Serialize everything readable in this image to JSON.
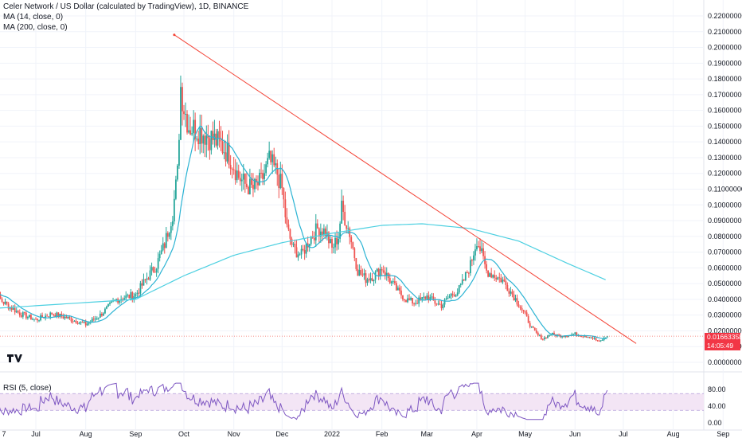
{
  "legend": {
    "title": "Celer Network / US Dollar (calculated by TradingView), 1D, BINANCE",
    "ma14": "MA (14, close, 0)",
    "ma200": "MA (200, close, 0)",
    "rsi": "RSI (5, close)"
  },
  "price_tag": {
    "price": "0.01663358",
    "countdown": "14:05:49",
    "color": "#f23645"
  },
  "colors": {
    "up": "#26a69a",
    "down": "#ef5350",
    "ma14": "#2bb3d3",
    "ma200": "#4dd0e1",
    "trendline": "#f44336",
    "rsi_line": "#7e57c2",
    "rsi_band": "#f3e5f5"
  },
  "chart_data": [
    {
      "type": "candlestick",
      "ylim": [
        -0.005,
        0.225
      ],
      "y_ticks": [
        "0.22000000",
        "0.21000000",
        "0.20000000",
        "0.19000000",
        "0.18000000",
        "0.17000000",
        "0.16000000",
        "0.15000000",
        "0.14000000",
        "0.13000000",
        "0.12000000",
        "0.11000000",
        "0.10000000",
        "0.09000000",
        "0.08000000",
        "0.07000000",
        "0.06000000",
        "0.05000000",
        "0.04000000",
        "0.03000000",
        "0.02000000",
        "0.01000000",
        "0.00000000"
      ],
      "y_tick_values": [
        0.22,
        0.21,
        0.2,
        0.19,
        0.18,
        0.17,
        0.16,
        0.15,
        0.14,
        0.13,
        0.12,
        0.11,
        0.1,
        0.09,
        0.08,
        0.07,
        0.06,
        0.05,
        0.04,
        0.03,
        0.02,
        0.01,
        0.0
      ],
      "x_ticks": [
        "7",
        "Jul",
        "Aug",
        "Sep",
        "Oct",
        "Nov",
        "Dec",
        "2022",
        "Feb",
        "Mar",
        "Apr",
        "May",
        "Jun",
        "Jul",
        "Aug",
        "Sep"
      ],
      "x_tick_days": [
        -23,
        0,
        31,
        62,
        92,
        123,
        153,
        184,
        215,
        243,
        274,
        304,
        335,
        365,
        396,
        427
      ],
      "price_key_days": [
        -30,
        -20,
        -10,
        0,
        10,
        20,
        31,
        40,
        50,
        62,
        70,
        75,
        80,
        85,
        88,
        90,
        92,
        95,
        100,
        105,
        110,
        115,
        120,
        123,
        126,
        130,
        135,
        140,
        145,
        150,
        153,
        156,
        160,
        165,
        170,
        175,
        180,
        184,
        188,
        190,
        195,
        200,
        205,
        210,
        215,
        220,
        225,
        230,
        235,
        240,
        243,
        248,
        252,
        258,
        262,
        265,
        270,
        274,
        276,
        280,
        285,
        290,
        295,
        300,
        304,
        308,
        312,
        315,
        320,
        325,
        330,
        335,
        340,
        345,
        350,
        355
      ],
      "price_key_close": [
        0.047,
        0.038,
        0.031,
        0.027,
        0.031,
        0.028,
        0.024,
        0.03,
        0.04,
        0.043,
        0.055,
        0.062,
        0.075,
        0.095,
        0.12,
        0.175,
        0.162,
        0.15,
        0.148,
        0.145,
        0.142,
        0.138,
        0.132,
        0.125,
        0.118,
        0.113,
        0.11,
        0.115,
        0.128,
        0.12,
        0.11,
        0.085,
        0.072,
        0.068,
        0.078,
        0.085,
        0.083,
        0.072,
        0.08,
        0.098,
        0.082,
        0.058,
        0.053,
        0.055,
        0.06,
        0.052,
        0.045,
        0.04,
        0.038,
        0.04,
        0.042,
        0.038,
        0.036,
        0.043,
        0.045,
        0.05,
        0.062,
        0.078,
        0.072,
        0.058,
        0.055,
        0.052,
        0.045,
        0.037,
        0.03,
        0.022,
        0.017,
        0.015,
        0.018,
        0.017,
        0.017,
        0.018,
        0.017,
        0.016,
        0.013,
        0.0166
      ],
      "ma200_key_days": [
        -30,
        62,
        92,
        123,
        153,
        184,
        215,
        240,
        270,
        300,
        330,
        355
      ],
      "ma200_key_values": [
        0.034,
        0.04,
        0.055,
        0.068,
        0.076,
        0.082,
        0.087,
        0.088,
        0.085,
        0.077,
        0.063,
        0.052
      ],
      "trendline": {
        "start": {
          "day": 86,
          "price": 0.208
        },
        "end": {
          "day": 373,
          "price": 0.012
        }
      },
      "last_price": 0.01663358
    },
    {
      "type": "line",
      "name": "RSI (5, close)",
      "ylim": [
        0,
        100
      ],
      "y_ticks": [
        "80.00",
        "40.00",
        "0.00"
      ],
      "y_tick_values": [
        80,
        40,
        0
      ],
      "band": [
        30,
        70
      ]
    }
  ]
}
